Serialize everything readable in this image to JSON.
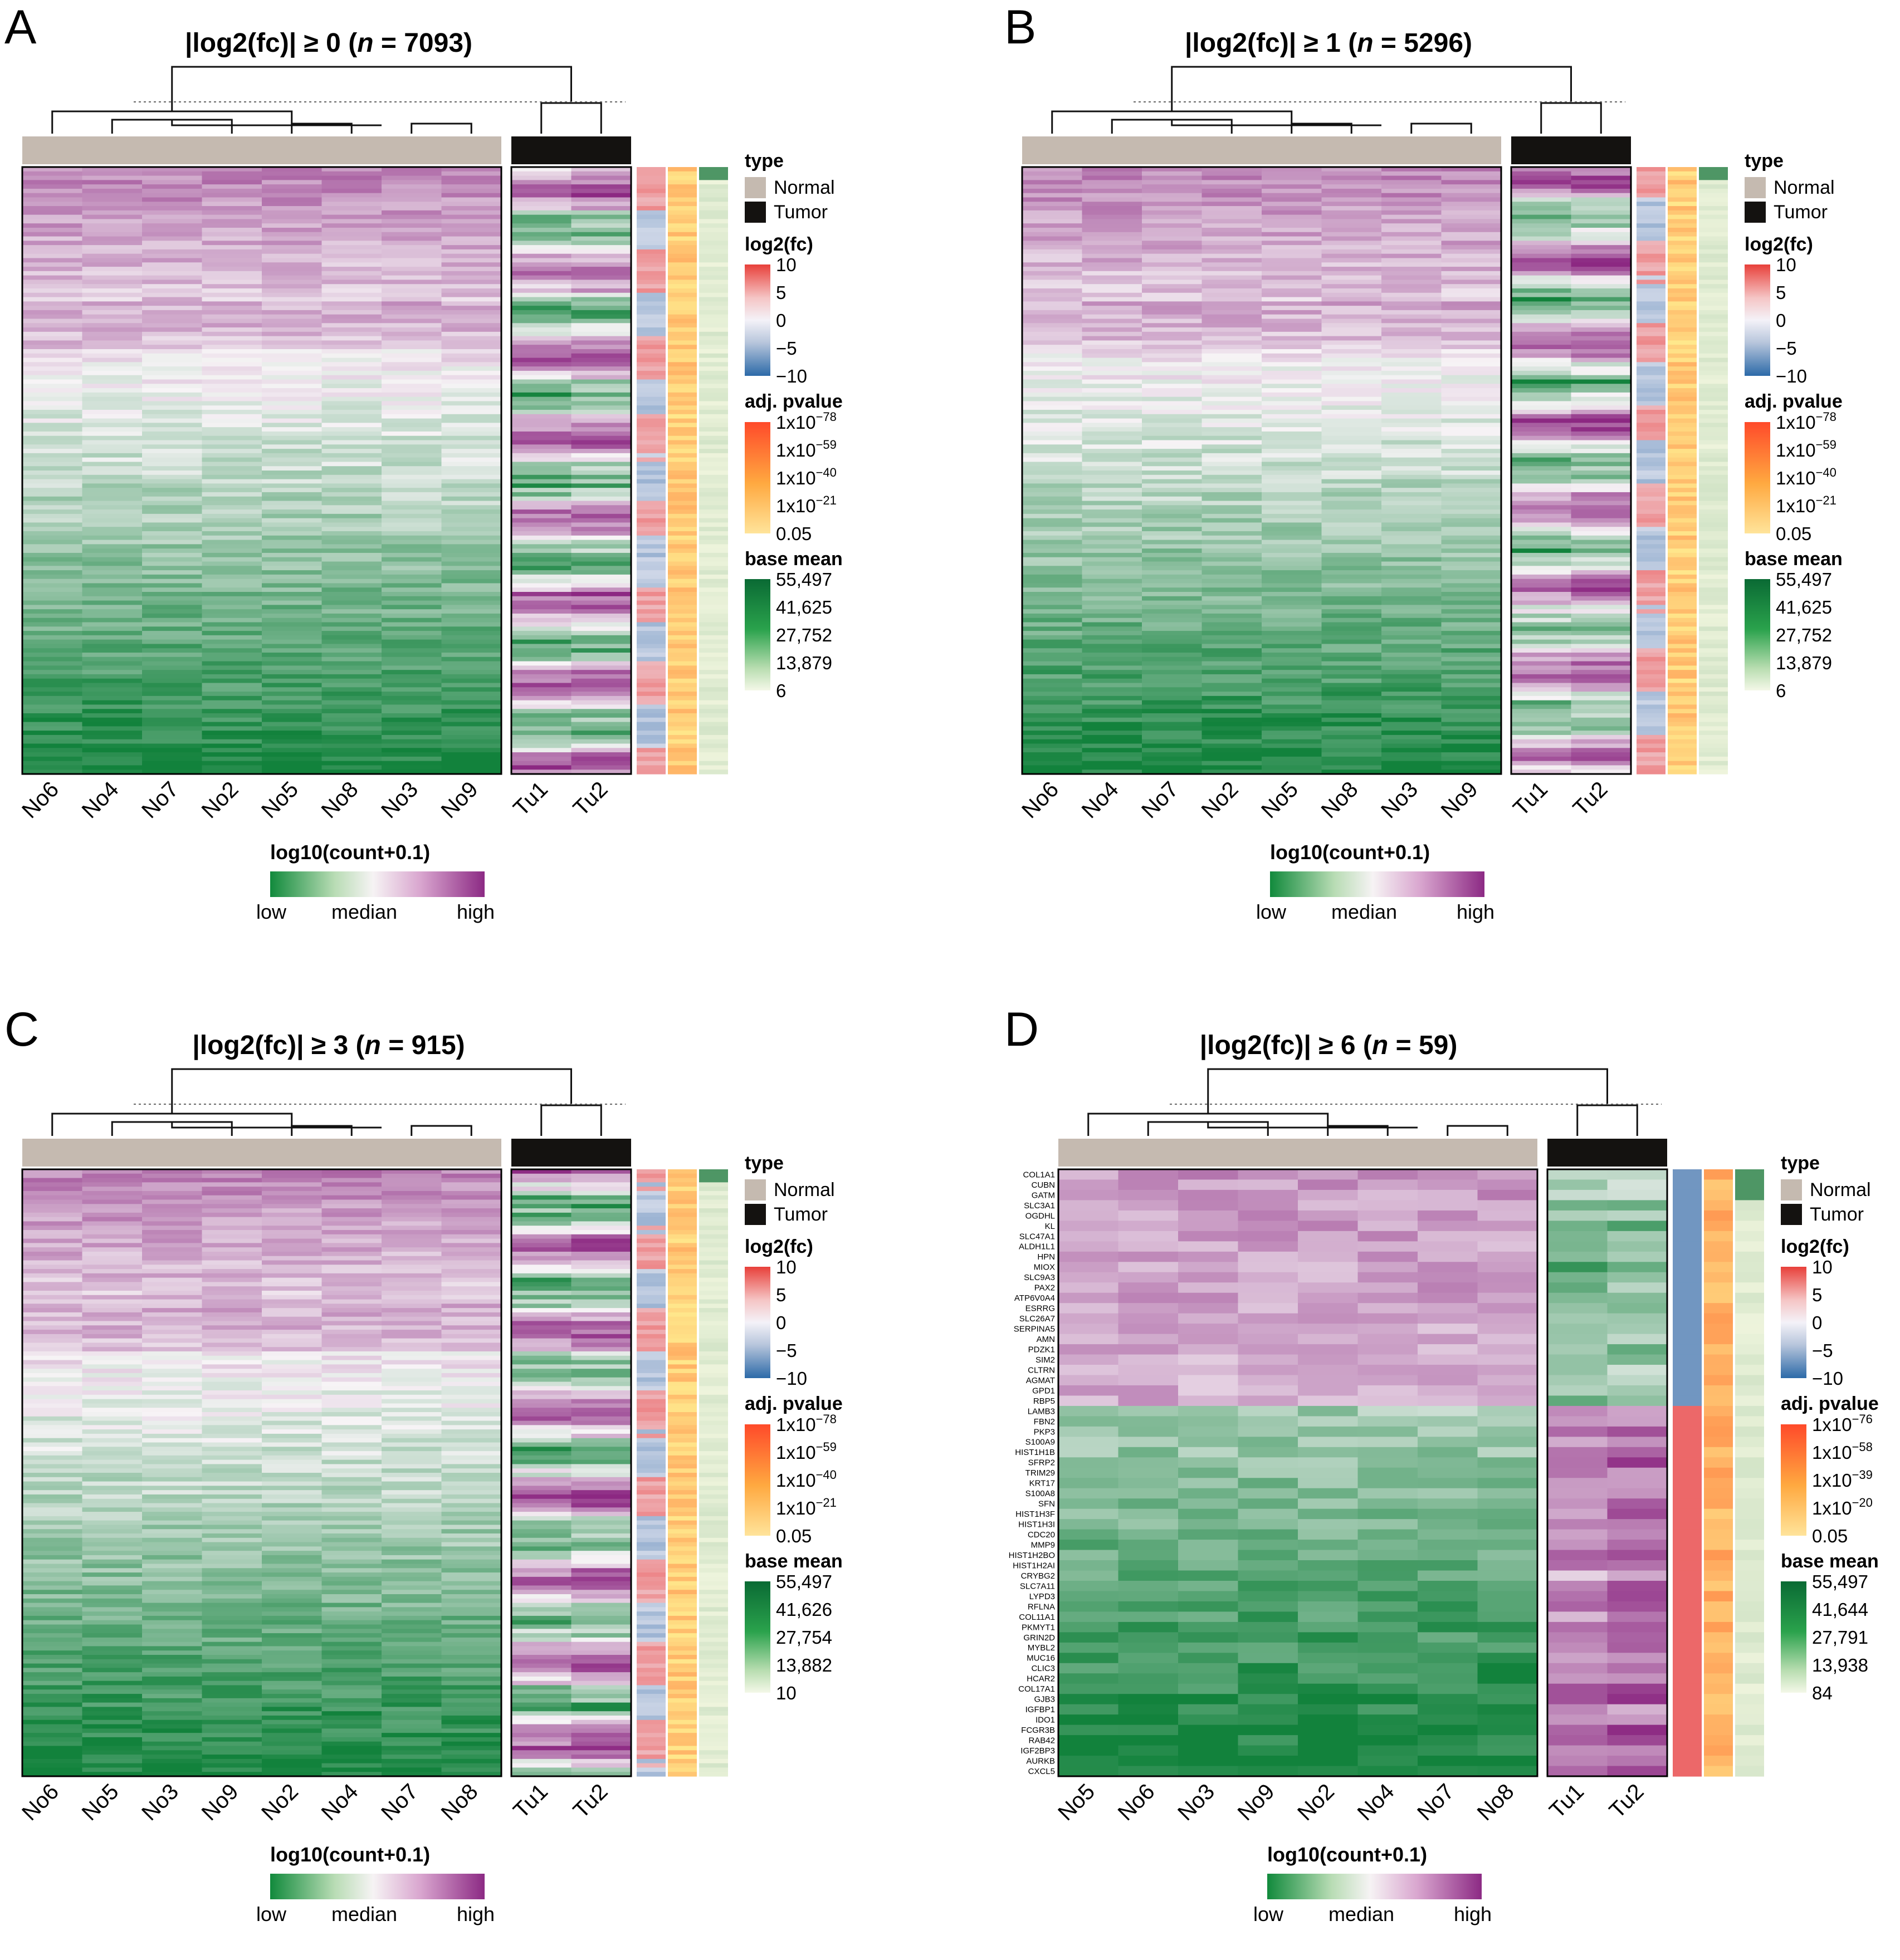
{
  "chart_data": [
    {
      "type": "heatmap",
      "panel": "A",
      "title_prefix": "|log2(fc)| ≥ 0 (",
      "title_n": "n",
      "title_suffix": " = 7093)",
      "normal_columns": [
        "No6",
        "No4",
        "No7",
        "No2",
        "No5",
        "No8",
        "No3",
        "No9"
      ],
      "tumor_columns": [
        "Tu1",
        "Tu2"
      ],
      "row_labels": [],
      "legend": {
        "type_title": "type",
        "type_items": [
          "Normal",
          "Tumor"
        ],
        "fc_title": "log2(fc)",
        "fc_ticks": [
          "10",
          "5",
          "0",
          "−5",
          "−10"
        ],
        "p_title": "adj. pvalue",
        "p_ticks": [
          [
            "1x10",
            "−78"
          ],
          [
            "1x10",
            "−59"
          ],
          [
            "1x10",
            "−40"
          ],
          [
            "1x10",
            "−21"
          ],
          [
            "0.05",
            ""
          ]
        ],
        "bm_title": "base mean",
        "bm_ticks": [
          "55,497",
          "41,625",
          "27,752",
          "13,879",
          "6"
        ]
      },
      "colorbar": {
        "title": "log10(count+0.1)",
        "labels": [
          "low",
          "median",
          "high"
        ]
      }
    },
    {
      "type": "heatmap",
      "panel": "B",
      "title_prefix": "|log2(fc)| ≥ 1 (",
      "title_n": "n",
      "title_suffix": " = 5296)",
      "normal_columns": [
        "No6",
        "No4",
        "No7",
        "No2",
        "No5",
        "No8",
        "No3",
        "No9"
      ],
      "tumor_columns": [
        "Tu1",
        "Tu2"
      ],
      "row_labels": [],
      "legend": {
        "type_title": "type",
        "type_items": [
          "Normal",
          "Tumor"
        ],
        "fc_title": "log2(fc)",
        "fc_ticks": [
          "10",
          "5",
          "0",
          "−5",
          "−10"
        ],
        "p_title": "adj. pvalue",
        "p_ticks": [
          [
            "1x10",
            "−78"
          ],
          [
            "1x10",
            "−59"
          ],
          [
            "1x10",
            "−40"
          ],
          [
            "1x10",
            "−21"
          ],
          [
            "0.05",
            ""
          ]
        ],
        "bm_title": "base mean",
        "bm_ticks": [
          "55,497",
          "41,625",
          "27,752",
          "13,879",
          "6"
        ]
      },
      "colorbar": {
        "title": "log10(count+0.1)",
        "labels": [
          "low",
          "median",
          "high"
        ]
      }
    },
    {
      "type": "heatmap",
      "panel": "C",
      "title_prefix": "|log2(fc)| ≥ 3 (",
      "title_n": "n",
      "title_suffix": " = 915)",
      "normal_columns": [
        "No6",
        "No5",
        "No3",
        "No9",
        "No2",
        "No4",
        "No7",
        "No8"
      ],
      "tumor_columns": [
        "Tu1",
        "Tu2"
      ],
      "row_labels": [],
      "legend": {
        "type_title": "type",
        "type_items": [
          "Normal",
          "Tumor"
        ],
        "fc_title": "log2(fc)",
        "fc_ticks": [
          "10",
          "5",
          "0",
          "−5",
          "−10"
        ],
        "p_title": "adj. pvalue",
        "p_ticks": [
          [
            "1x10",
            "−78"
          ],
          [
            "1x10",
            "−59"
          ],
          [
            "1x10",
            "−40"
          ],
          [
            "1x10",
            "−21"
          ],
          [
            "0.05",
            ""
          ]
        ],
        "bm_title": "base mean",
        "bm_ticks": [
          "55,497",
          "41,626",
          "27,754",
          "13,882",
          "10"
        ]
      },
      "colorbar": {
        "title": "log10(count+0.1)",
        "labels": [
          "low",
          "median",
          "high"
        ]
      }
    },
    {
      "type": "heatmap",
      "panel": "D",
      "title_prefix": "|log2(fc)| ≥ 6 (",
      "title_n": "n",
      "title_suffix": " = 59)",
      "normal_columns": [
        "No5",
        "No6",
        "No3",
        "No9",
        "No2",
        "No4",
        "No7",
        "No8"
      ],
      "tumor_columns": [
        "Tu1",
        "Tu2"
      ],
      "row_labels": [
        "COL1A1",
        "CUBN",
        "GATM",
        "SLC3A1",
        "OGDHL",
        "KL",
        "SLC47A1",
        "ALDH1L1",
        "HPN",
        "MIOX",
        "SLC9A3",
        "PAX2",
        "ATP6V0A4",
        "ESRRG",
        "SLC26A7",
        "SERPINA5",
        "AMN",
        "PDZK1",
        "SIM2",
        "CLTRN",
        "AGMAT",
        "GPD1",
        "RBP5",
        "LAMB3",
        "FBN2",
        "PKP3",
        "S100A9",
        "HIST1H1B",
        "SFRP2",
        "TRIM29",
        "KRT17",
        "S100A8",
        "SFN",
        "HIST1H3F",
        "HIST1H3I",
        "CDC20",
        "MMP9",
        "HIST1H2BO",
        "HIST1H2AI",
        "CRYBG2",
        "SLC7A11",
        "LYPD3",
        "RFLNA",
        "COL11A1",
        "PKMYT1",
        "GRIN2D",
        "MYBL2",
        "MUC16",
        "CLIC3",
        "HCAR2",
        "COL17A1",
        "GJB3",
        "IGFBP1",
        "IDO1",
        "FCGR3B",
        "RAB42",
        "IGF2BP3",
        "AURKB",
        "CXCL5"
      ],
      "legend": {
        "type_title": "type",
        "type_items": [
          "Normal",
          "Tumor"
        ],
        "fc_title": "log2(fc)",
        "fc_ticks": [
          "10",
          "5",
          "0",
          "−5",
          "−10"
        ],
        "p_title": "adj. pvalue",
        "p_ticks": [
          [
            "1x10",
            "−76"
          ],
          [
            "1x10",
            "−58"
          ],
          [
            "1x10",
            "−39"
          ],
          [
            "1x10",
            "−20"
          ],
          [
            "0.05",
            ""
          ]
        ],
        "bm_title": "base mean",
        "bm_ticks": [
          "55,497",
          "41,644",
          "27,791",
          "13,938",
          "84"
        ]
      },
      "colorbar": {
        "title": "log10(count+0.1)",
        "labels": [
          "low",
          "median",
          "high"
        ]
      }
    }
  ]
}
